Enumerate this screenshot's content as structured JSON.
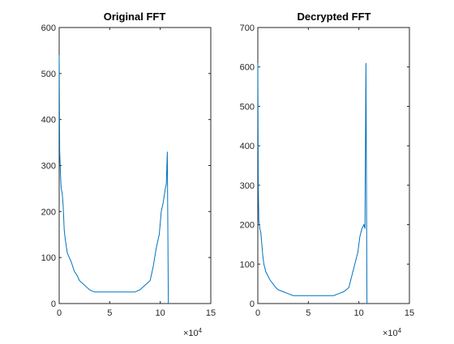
{
  "figure": {
    "background": "#ffffff",
    "line_color": "#0072BD"
  },
  "chart_data": [
    {
      "type": "line",
      "title": "Original FFT",
      "xlabel": "",
      "ylabel": "",
      "xlim": [
        0,
        15
      ],
      "ylim": [
        0,
        600
      ],
      "x_exponent_label": "×10",
      "x_exponent_power": "4",
      "xticks": [
        0,
        5,
        10,
        15
      ],
      "yticks": [
        0,
        100,
        200,
        300,
        400,
        500,
        600
      ],
      "xtick_labels": [
        "0",
        "5",
        "10",
        "15"
      ],
      "ytick_labels": [
        "0",
        "100",
        "200",
        "300",
        "400",
        "500",
        "600"
      ],
      "grid": false,
      "legend": "none",
      "series": [
        {
          "color": "#0072BD",
          "x": [
            0,
            0.05,
            0.1,
            0.15,
            0.2,
            0.3,
            0.4,
            0.5,
            0.6,
            0.8,
            1.0,
            1.2,
            1.5,
            1.8,
            2.0,
            2.5,
            3.0,
            3.5,
            4.0,
            4.5,
            5.0,
            5.5,
            6.0,
            6.5,
            7.0,
            7.5,
            8.0,
            8.5,
            9.0,
            9.3,
            9.6,
            9.9,
            10.1,
            10.3,
            10.5,
            10.6,
            10.7,
            10.8
          ],
          "y": [
            540,
            330,
            300,
            270,
            250,
            240,
            210,
            160,
            140,
            110,
            100,
            90,
            70,
            60,
            50,
            40,
            30,
            25,
            25,
            25,
            25,
            25,
            25,
            25,
            25,
            25,
            30,
            40,
            50,
            80,
            120,
            150,
            200,
            220,
            250,
            260,
            330,
            0
          ]
        }
      ]
    },
    {
      "type": "line",
      "title": "Decrypted FFT",
      "xlabel": "",
      "ylabel": "",
      "xlim": [
        0,
        15
      ],
      "ylim": [
        0,
        700
      ],
      "x_exponent_label": "×10",
      "x_exponent_power": "4",
      "xticks": [
        0,
        5,
        10,
        15
      ],
      "yticks": [
        0,
        100,
        200,
        300,
        400,
        500,
        600,
        700
      ],
      "xtick_labels": [
        "0",
        "5",
        "10",
        "15"
      ],
      "ytick_labels": [
        "0",
        "100",
        "200",
        "300",
        "400",
        "500",
        "600",
        "700"
      ],
      "grid": false,
      "legend": "none",
      "series": [
        {
          "color": "#0072BD",
          "x": [
            0,
            0.05,
            0.1,
            0.15,
            0.2,
            0.3,
            0.4,
            0.5,
            0.6,
            0.8,
            1.0,
            1.2,
            1.5,
            1.8,
            2.0,
            2.5,
            3.0,
            3.5,
            4.0,
            4.5,
            5.0,
            5.5,
            6.0,
            6.5,
            7.0,
            7.5,
            8.0,
            8.5,
            9.0,
            9.3,
            9.6,
            9.9,
            10.1,
            10.3,
            10.5,
            10.6,
            10.7,
            10.8
          ],
          "y": [
            610,
            300,
            210,
            200,
            190,
            180,
            150,
            120,
            100,
            80,
            70,
            60,
            50,
            40,
            35,
            30,
            25,
            20,
            20,
            20,
            20,
            20,
            20,
            20,
            20,
            20,
            25,
            30,
            40,
            70,
            100,
            130,
            170,
            190,
            200,
            190,
            610,
            0
          ]
        }
      ]
    }
  ]
}
